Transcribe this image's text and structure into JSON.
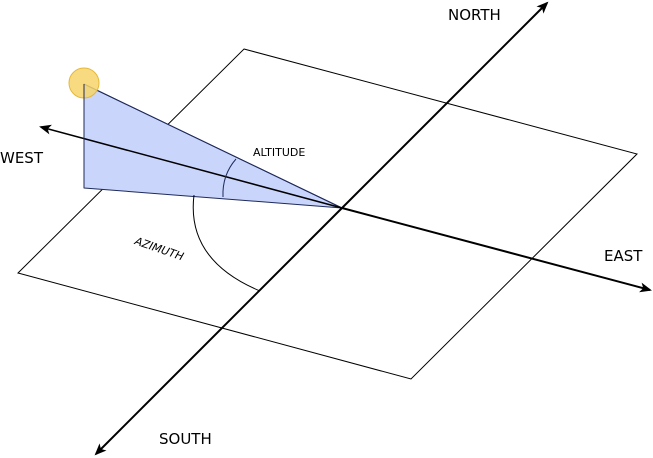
{
  "labels": {
    "north": "NORTH",
    "south": "SOUTH",
    "east": "EAST",
    "west": "WEST",
    "altitude": "ALTITUDE",
    "azimuth": "AZIMUTH"
  },
  "colors": {
    "sun_fill": "#f7d56b",
    "sun_stroke": "#e5b83a",
    "wedge_fill": "#c9d5fb",
    "wedge_stroke": "#1f2a5a",
    "line": "#000000"
  }
}
